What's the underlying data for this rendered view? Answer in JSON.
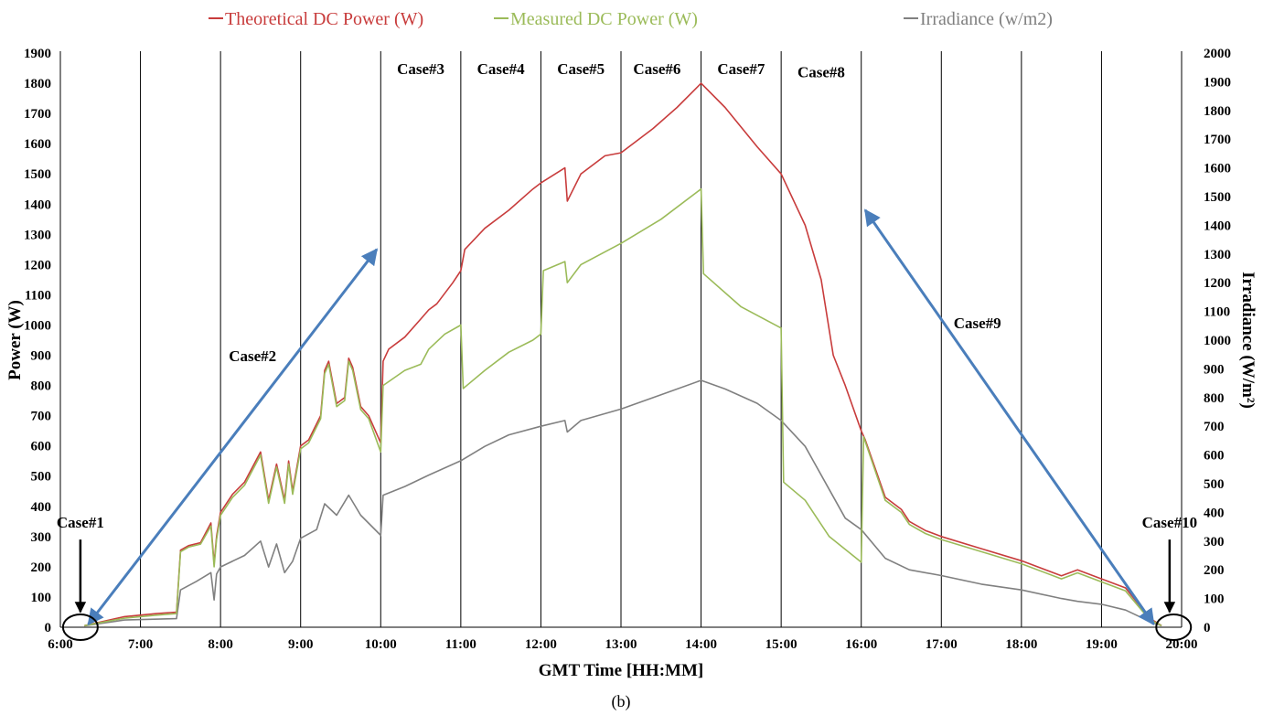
{
  "chart_data": {
    "type": "line",
    "caption": "(b)",
    "xlabel": "GMT Time [HH:MM]",
    "ylabel_left": "Power  (W)",
    "ylabel_right": "Irradiance (W/m²)",
    "x_ticks": [
      "6:00",
      "7:00",
      "8:00",
      "9:00",
      "10:00",
      "11:00",
      "12:00",
      "13:00",
      "14:00",
      "15:00",
      "16:00",
      "17:00",
      "18:00",
      "19:00",
      "20:00"
    ],
    "xlim_hours": [
      6,
      20
    ],
    "ylim_left": [
      0,
      1900
    ],
    "ylim_right": [
      0,
      2000
    ],
    "y_left_ticks": [
      0,
      100,
      200,
      300,
      400,
      500,
      600,
      700,
      800,
      900,
      1000,
      1100,
      1200,
      1300,
      1400,
      1500,
      1600,
      1700,
      1800,
      1900
    ],
    "y_right_ticks": [
      0,
      100,
      200,
      300,
      400,
      500,
      600,
      700,
      800,
      900,
      1000,
      1100,
      1200,
      1300,
      1400,
      1500,
      1600,
      1700,
      1800,
      1900,
      2000
    ],
    "grid": "vertical lines every hour",
    "legend_position": "top",
    "series": [
      {
        "name": "Theoretical DC Power (W)",
        "axis": "left",
        "color": "#c83c3c",
        "points": [
          [
            6.3,
            5
          ],
          [
            6.8,
            35
          ],
          [
            7.2,
            45
          ],
          [
            7.45,
            50
          ],
          [
            7.5,
            255
          ],
          [
            7.6,
            270
          ],
          [
            7.75,
            280
          ],
          [
            7.88,
            345
          ],
          [
            7.92,
            210
          ],
          [
            7.95,
            300
          ],
          [
            8.0,
            380
          ],
          [
            8.15,
            440
          ],
          [
            8.3,
            480
          ],
          [
            8.5,
            580
          ],
          [
            8.6,
            420
          ],
          [
            8.7,
            540
          ],
          [
            8.8,
            420
          ],
          [
            8.85,
            550
          ],
          [
            8.9,
            450
          ],
          [
            9.0,
            600
          ],
          [
            9.1,
            620
          ],
          [
            9.25,
            700
          ],
          [
            9.3,
            850
          ],
          [
            9.35,
            880
          ],
          [
            9.45,
            740
          ],
          [
            9.55,
            760
          ],
          [
            9.6,
            890
          ],
          [
            9.65,
            860
          ],
          [
            9.75,
            730
          ],
          [
            9.85,
            700
          ],
          [
            10.0,
            610
          ],
          [
            10.03,
            880
          ],
          [
            10.1,
            920
          ],
          [
            10.3,
            960
          ],
          [
            10.5,
            1020
          ],
          [
            10.6,
            1050
          ],
          [
            10.7,
            1070
          ],
          [
            10.9,
            1140
          ],
          [
            11.0,
            1180
          ],
          [
            11.05,
            1250
          ],
          [
            11.3,
            1320
          ],
          [
            11.6,
            1380
          ],
          [
            11.9,
            1450
          ],
          [
            12.0,
            1470
          ],
          [
            12.3,
            1520
          ],
          [
            12.33,
            1410
          ],
          [
            12.5,
            1500
          ],
          [
            12.8,
            1560
          ],
          [
            13.0,
            1570
          ],
          [
            13.4,
            1650
          ],
          [
            13.7,
            1720
          ],
          [
            14.0,
            1800
          ],
          [
            14.3,
            1720
          ],
          [
            14.7,
            1590
          ],
          [
            15.0,
            1500
          ],
          [
            15.3,
            1330
          ],
          [
            15.5,
            1150
          ],
          [
            15.65,
            900
          ],
          [
            15.8,
            800
          ],
          [
            16.0,
            650
          ],
          [
            16.05,
            620
          ],
          [
            16.3,
            430
          ],
          [
            16.5,
            390
          ],
          [
            16.6,
            350
          ],
          [
            16.8,
            320
          ],
          [
            17.0,
            300
          ],
          [
            17.5,
            260
          ],
          [
            18.0,
            220
          ],
          [
            18.5,
            170
          ],
          [
            18.7,
            190
          ],
          [
            19.0,
            160
          ],
          [
            19.3,
            130
          ],
          [
            19.6,
            30
          ],
          [
            19.75,
            5
          ]
        ]
      },
      {
        "name": "Measured DC Power (W)",
        "axis": "left",
        "color": "#9bbb59",
        "points": [
          [
            6.3,
            5
          ],
          [
            6.8,
            30
          ],
          [
            7.2,
            40
          ],
          [
            7.45,
            45
          ],
          [
            7.5,
            250
          ],
          [
            7.6,
            265
          ],
          [
            7.75,
            275
          ],
          [
            7.88,
            335
          ],
          [
            7.92,
            200
          ],
          [
            7.95,
            290
          ],
          [
            8.0,
            370
          ],
          [
            8.15,
            430
          ],
          [
            8.3,
            470
          ],
          [
            8.5,
            570
          ],
          [
            8.6,
            410
          ],
          [
            8.7,
            530
          ],
          [
            8.8,
            410
          ],
          [
            8.85,
            540
          ],
          [
            8.9,
            440
          ],
          [
            9.0,
            590
          ],
          [
            9.1,
            610
          ],
          [
            9.25,
            690
          ],
          [
            9.3,
            840
          ],
          [
            9.35,
            870
          ],
          [
            9.45,
            730
          ],
          [
            9.55,
            750
          ],
          [
            9.6,
            880
          ],
          [
            9.65,
            850
          ],
          [
            9.75,
            720
          ],
          [
            9.85,
            690
          ],
          [
            10.0,
            580
          ],
          [
            10.03,
            800
          ],
          [
            10.3,
            850
          ],
          [
            10.5,
            870
          ],
          [
            10.6,
            920
          ],
          [
            10.8,
            970
          ],
          [
            11.0,
            1000
          ],
          [
            11.03,
            790
          ],
          [
            11.3,
            850
          ],
          [
            11.6,
            910
          ],
          [
            11.9,
            950
          ],
          [
            12.0,
            970
          ],
          [
            12.03,
            1180
          ],
          [
            12.3,
            1210
          ],
          [
            12.33,
            1140
          ],
          [
            12.5,
            1200
          ],
          [
            13.0,
            1270
          ],
          [
            13.5,
            1350
          ],
          [
            14.0,
            1450
          ],
          [
            14.03,
            1170
          ],
          [
            14.5,
            1060
          ],
          [
            15.0,
            990
          ],
          [
            15.03,
            480
          ],
          [
            15.3,
            420
          ],
          [
            15.6,
            300
          ],
          [
            16.0,
            215
          ],
          [
            16.03,
            630
          ],
          [
            16.3,
            420
          ],
          [
            16.5,
            380
          ],
          [
            16.6,
            340
          ],
          [
            16.8,
            310
          ],
          [
            17.0,
            290
          ],
          [
            17.5,
            250
          ],
          [
            18.0,
            210
          ],
          [
            18.5,
            160
          ],
          [
            18.7,
            180
          ],
          [
            19.0,
            150
          ],
          [
            19.3,
            120
          ],
          [
            19.6,
            25
          ],
          [
            19.75,
            5
          ]
        ]
      },
      {
        "name": "Irradiance (w/m2)",
        "axis": "right",
        "color": "#808080",
        "points": [
          [
            6.3,
            5
          ],
          [
            6.8,
            25
          ],
          [
            7.45,
            30
          ],
          [
            7.5,
            130
          ],
          [
            7.7,
            160
          ],
          [
            7.88,
            190
          ],
          [
            7.92,
            95
          ],
          [
            7.95,
            185
          ],
          [
            8.0,
            210
          ],
          [
            8.3,
            250
          ],
          [
            8.5,
            300
          ],
          [
            8.6,
            210
          ],
          [
            8.7,
            290
          ],
          [
            8.8,
            190
          ],
          [
            8.9,
            230
          ],
          [
            9.0,
            310
          ],
          [
            9.2,
            340
          ],
          [
            9.3,
            430
          ],
          [
            9.45,
            390
          ],
          [
            9.6,
            460
          ],
          [
            9.75,
            390
          ],
          [
            10.0,
            320
          ],
          [
            10.03,
            460
          ],
          [
            10.3,
            490
          ],
          [
            10.6,
            530
          ],
          [
            11.0,
            580
          ],
          [
            11.3,
            630
          ],
          [
            11.6,
            670
          ],
          [
            12.0,
            700
          ],
          [
            12.3,
            720
          ],
          [
            12.33,
            680
          ],
          [
            12.5,
            720
          ],
          [
            13.0,
            760
          ],
          [
            13.5,
            810
          ],
          [
            14.0,
            860
          ],
          [
            14.3,
            830
          ],
          [
            14.7,
            780
          ],
          [
            15.0,
            720
          ],
          [
            15.3,
            630
          ],
          [
            15.6,
            480
          ],
          [
            15.8,
            380
          ],
          [
            16.0,
            340
          ],
          [
            16.3,
            240
          ],
          [
            16.6,
            200
          ],
          [
            17.0,
            180
          ],
          [
            17.5,
            150
          ],
          [
            18.0,
            130
          ],
          [
            18.5,
            100
          ],
          [
            18.7,
            90
          ],
          [
            19.0,
            80
          ],
          [
            19.3,
            60
          ],
          [
            19.6,
            20
          ],
          [
            19.75,
            5
          ]
        ]
      }
    ],
    "cases": [
      {
        "label": "Case#1",
        "hour": 6.25,
        "y_left": 330
      },
      {
        "label": "Case#2",
        "hour": 8.4,
        "y_left": 880
      },
      {
        "label": "Case#3",
        "hour": 10.5,
        "y_left": 1830
      },
      {
        "label": "Case#4",
        "hour": 11.5,
        "y_left": 1830
      },
      {
        "label": "Case#5",
        "hour": 12.5,
        "y_left": 1830
      },
      {
        "label": "Case#6",
        "hour": 13.45,
        "y_left": 1830
      },
      {
        "label": "Case#7",
        "hour": 14.5,
        "y_left": 1830
      },
      {
        "label": "Case#8",
        "hour": 15.5,
        "y_left": 1820
      },
      {
        "label": "Case#9",
        "hour": 17.45,
        "y_left": 990
      },
      {
        "label": "Case#10",
        "hour": 19.85,
        "y_left": 330
      }
    ],
    "arrows": [
      {
        "from": [
          6.35,
          10
        ],
        "to": [
          9.95,
          1250
        ]
      },
      {
        "from": [
          19.65,
          10
        ],
        "to": [
          16.05,
          1380
        ]
      }
    ],
    "case_markers": [
      {
        "label": "Case#1",
        "from": [
          6.25,
          290
        ],
        "to": [
          6.25,
          50
        ],
        "ellipse": [
          6.25,
          0
        ]
      },
      {
        "label": "Case#10",
        "from": [
          19.85,
          290
        ],
        "to": [
          19.85,
          50
        ],
        "ellipse": [
          19.9,
          0
        ]
      }
    ]
  }
}
